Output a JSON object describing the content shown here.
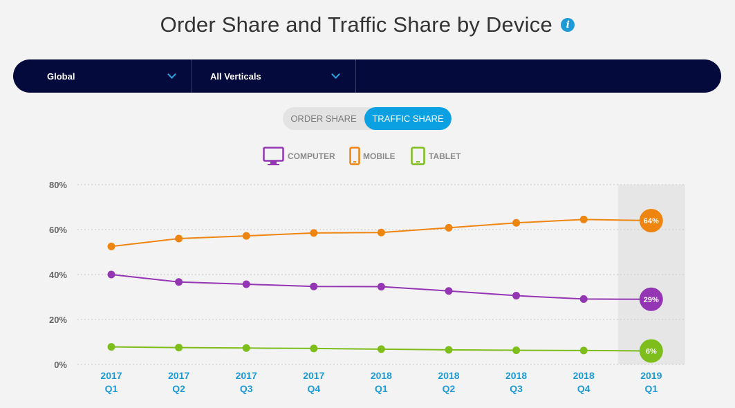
{
  "header": {
    "title": "Order Share and Traffic Share by Device",
    "info_icon": "i"
  },
  "filters": {
    "region": "Global",
    "vertical": "All Verticals"
  },
  "toggle": {
    "order_label": "ORDER SHARE",
    "traffic_label": "TRAFFIC SHARE",
    "active": "traffic"
  },
  "colors": {
    "computer": "#9435b4",
    "mobile": "#ee8511",
    "tablet": "#7dbd1c",
    "accent": "#0ba0e2",
    "bar": "#050a3d"
  },
  "legend": [
    {
      "key": "computer",
      "label": "COMPUTER",
      "icon": "monitor-icon"
    },
    {
      "key": "mobile",
      "label": "MOBILE",
      "icon": "phone-icon"
    },
    {
      "key": "tablet",
      "label": "TABLET",
      "icon": "tablet-icon"
    }
  ],
  "chart_data": {
    "type": "line",
    "categories": [
      [
        "2017",
        "Q1"
      ],
      [
        "2017",
        "Q2"
      ],
      [
        "2017",
        "Q3"
      ],
      [
        "2017",
        "Q4"
      ],
      [
        "2018",
        "Q1"
      ],
      [
        "2018",
        "Q2"
      ],
      [
        "2018",
        "Q3"
      ],
      [
        "2018",
        "Q4"
      ],
      [
        "2019",
        "Q1"
      ]
    ],
    "y_ticks": [
      "0%",
      "20%",
      "40%",
      "60%",
      "80%"
    ],
    "ylim": [
      0,
      80
    ],
    "highlight_last": true,
    "series": [
      {
        "name": "MOBILE",
        "key": "mobile",
        "values": [
          52.5,
          56,
          57.2,
          58.5,
          58.7,
          60.8,
          63,
          64.5,
          64
        ],
        "end_label": "64%"
      },
      {
        "name": "COMPUTER",
        "key": "computer",
        "values": [
          40,
          36.7,
          35.7,
          34.7,
          34.6,
          32.7,
          30.6,
          29.1,
          29
        ],
        "end_label": "29%"
      },
      {
        "name": "TABLET",
        "key": "tablet",
        "values": [
          7.8,
          7.5,
          7.3,
          7.1,
          6.8,
          6.5,
          6.3,
          6.2,
          6
        ],
        "end_label": "6%"
      }
    ]
  }
}
